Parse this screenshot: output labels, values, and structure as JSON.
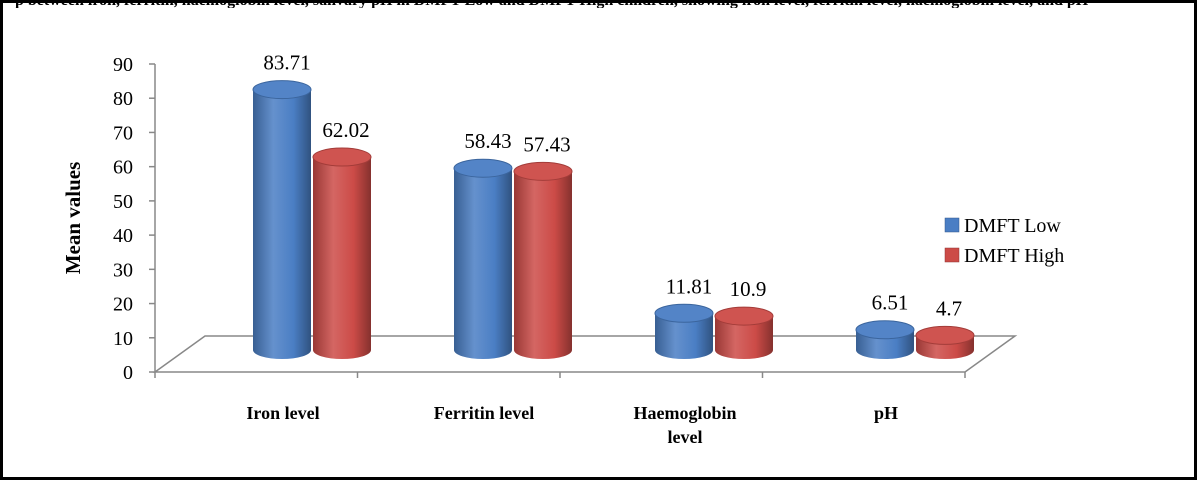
{
  "top_strip_text": "p between iron, ferritin, haemoglobin level, salivary pH in DMFT Low and DMFT High children, showing iron level, ferritin level, haemoglobin level, and pH",
  "chart_data": {
    "type": "bar",
    "categories": [
      [
        "Iron level"
      ],
      [
        "Ferritin level"
      ],
      [
        "Haemoglobin",
        "level"
      ],
      [
        "pH"
      ]
    ],
    "series": [
      {
        "name": "DMFT Low",
        "values": [
          83.71,
          58.43,
          11.81,
          6.51
        ],
        "color": "#4a7ec4"
      },
      {
        "name": "DMFT High",
        "values": [
          62.02,
          57.43,
          10.9,
          4.7
        ],
        "color": "#cc4b47"
      }
    ],
    "data_labels": [
      [
        "83.71",
        "62.02"
      ],
      [
        "58.43",
        "57.43"
      ],
      [
        "11.81",
        "10.9"
      ],
      [
        "6.51",
        "4.7"
      ]
    ],
    "yticks": [
      "0",
      "10",
      "20",
      "30",
      "40",
      "50",
      "60",
      "70",
      "80",
      "90"
    ],
    "ylim": [
      0,
      90
    ],
    "xlabel": "",
    "ylabel": "Mean values",
    "legend_position": "right",
    "grid": false,
    "style": "3d-cylinder"
  }
}
